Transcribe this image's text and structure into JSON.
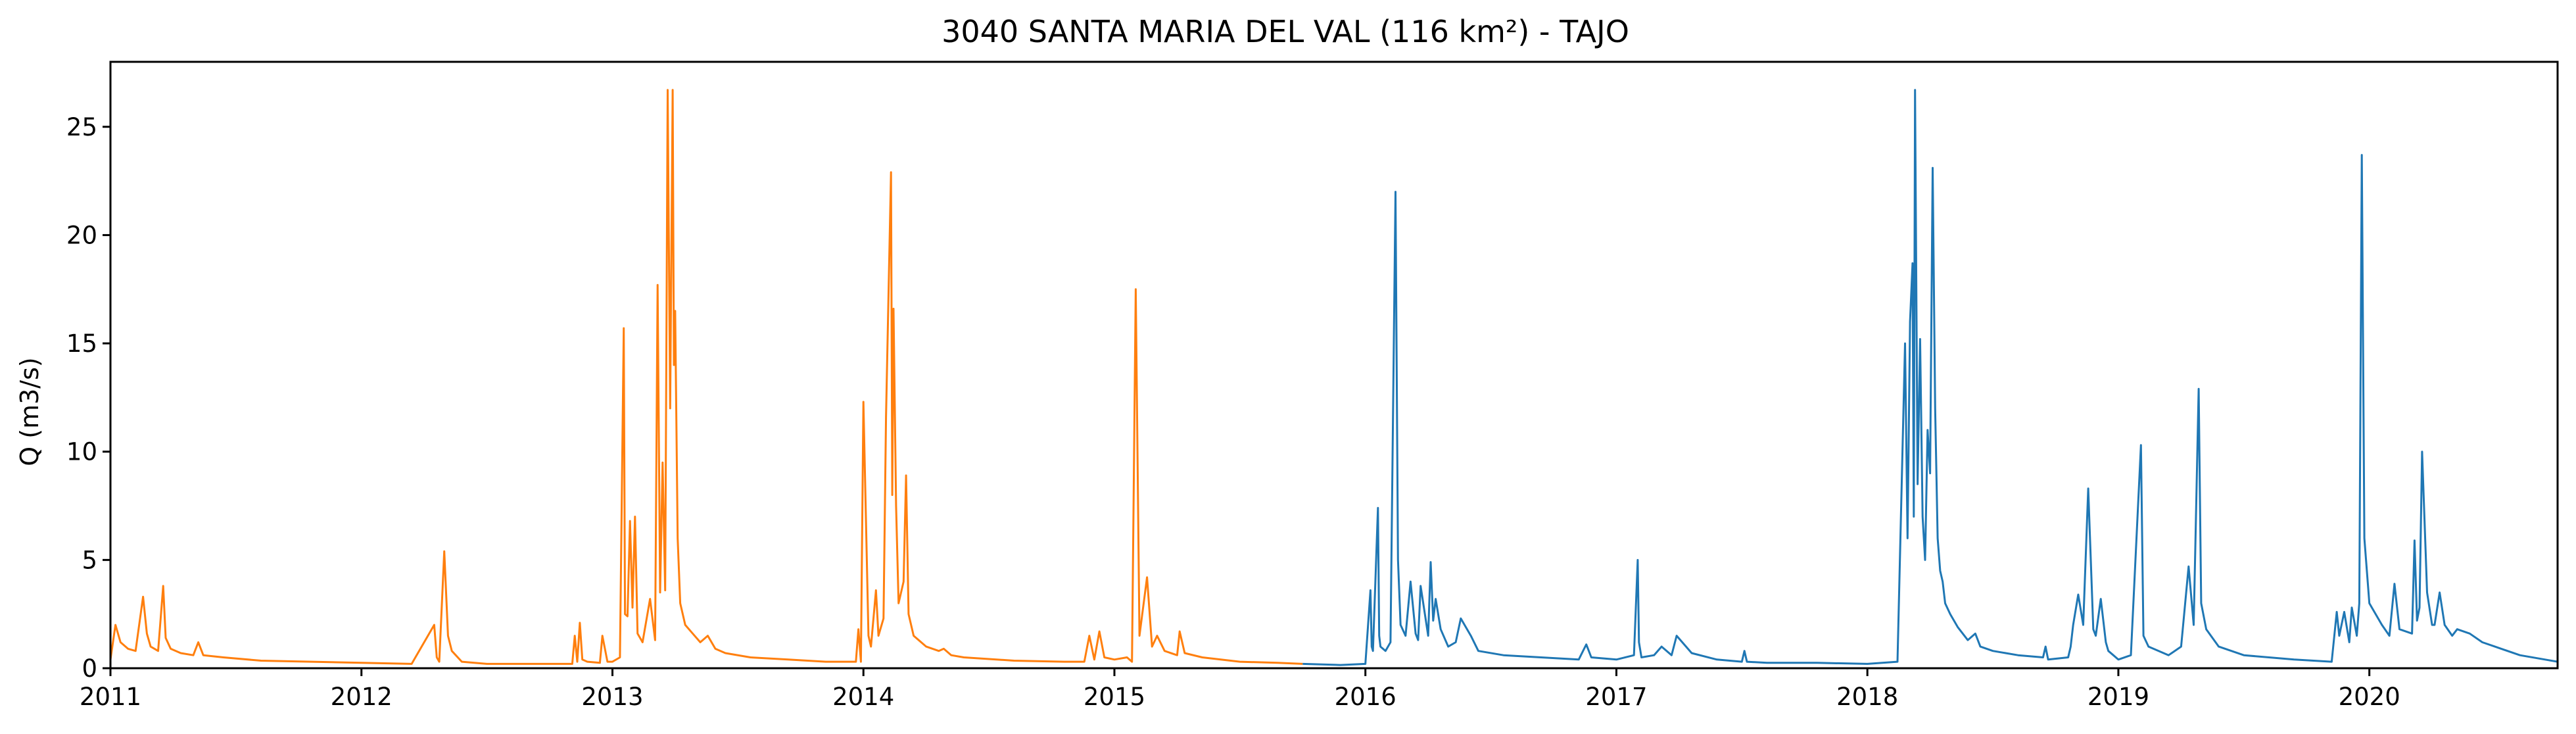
{
  "chart_data": {
    "type": "line",
    "title": "3040 SANTA MARIA DEL VAL (116 km²) - TAJO",
    "xlabel": "",
    "ylabel": "Q (m3/s)",
    "xlim": [
      2011.0,
      2020.75
    ],
    "ylim": [
      0,
      28
    ],
    "x_ticks": [
      2011,
      2012,
      2013,
      2014,
      2015,
      2016,
      2017,
      2018,
      2019,
      2020
    ],
    "x_tick_labels": [
      "2011",
      "2012",
      "2013",
      "2014",
      "2015",
      "2016",
      "2017",
      "2018",
      "2019",
      "2020"
    ],
    "y_ticks": [
      0,
      5,
      10,
      15,
      20,
      25
    ],
    "y_tick_labels": [
      "0",
      "5",
      "10",
      "15",
      "20",
      "25"
    ],
    "grid": false,
    "legend": "none",
    "series": [
      {
        "name": "series-orange",
        "color": "#ff7f0e",
        "x": [
          2011.0,
          2011.02,
          2011.04,
          2011.07,
          2011.1,
          2011.13,
          2011.145,
          2011.16,
          2011.19,
          2011.21,
          2011.22,
          2011.24,
          2011.28,
          2011.33,
          2011.35,
          2011.37,
          2011.45,
          2011.6,
          2011.8,
          2012.0,
          2012.2,
          2012.29,
          2012.3,
          2012.31,
          2012.33,
          2012.345,
          2012.36,
          2012.4,
          2012.5,
          2012.7,
          2012.84,
          2012.85,
          2012.86,
          2012.87,
          2012.88,
          2012.9,
          2012.95,
          2012.96,
          2012.98,
          2013.0,
          2013.03,
          2013.045,
          2013.05,
          2013.06,
          2013.07,
          2013.08,
          2013.09,
          2013.1,
          2013.12,
          2013.15,
          2013.17,
          2013.18,
          2013.19,
          2013.2,
          2013.21,
          2013.22,
          2013.23,
          2013.24,
          2013.245,
          2013.25,
          2013.26,
          2013.27,
          2013.29,
          2013.32,
          2013.35,
          2013.38,
          2013.41,
          2013.45,
          2013.55,
          2013.7,
          2013.85,
          2013.97,
          2013.98,
          2013.99,
          2014.0,
          2014.02,
          2014.03,
          2014.05,
          2014.06,
          2014.08,
          2014.09,
          2014.11,
          2014.115,
          2014.12,
          2014.13,
          2014.14,
          2014.16,
          2014.17,
          2014.18,
          2014.2,
          2014.25,
          2014.3,
          2014.32,
          2014.35,
          2014.4,
          2014.6,
          2014.8,
          2014.88,
          2014.9,
          2014.92,
          2014.94,
          2014.96,
          2015.0,
          2015.05,
          2015.07,
          2015.085,
          2015.1,
          2015.13,
          2015.15,
          2015.17,
          2015.2,
          2015.25,
          2015.26,
          2015.28,
          2015.35,
          2015.5,
          2015.65,
          2015.75
        ],
        "values": [
          0.4,
          2.0,
          1.2,
          0.9,
          0.8,
          3.3,
          1.6,
          1.0,
          0.8,
          3.8,
          1.4,
          0.9,
          0.7,
          0.6,
          1.2,
          0.6,
          0.5,
          0.35,
          0.3,
          0.25,
          0.2,
          2.0,
          0.5,
          0.3,
          5.4,
          1.5,
          0.8,
          0.3,
          0.2,
          0.2,
          0.2,
          1.5,
          0.3,
          2.1,
          0.4,
          0.3,
          0.25,
          1.5,
          0.3,
          0.3,
          0.5,
          15.7,
          2.5,
          2.4,
          6.8,
          2.8,
          7.0,
          1.6,
          1.2,
          3.2,
          1.3,
          17.7,
          3.5,
          9.5,
          3.6,
          26.7,
          12.0,
          26.7,
          14.0,
          16.5,
          6.0,
          3.0,
          2.0,
          1.6,
          1.2,
          1.5,
          0.9,
          0.7,
          0.5,
          0.4,
          0.3,
          0.3,
          1.8,
          0.3,
          12.3,
          1.5,
          1.0,
          3.6,
          1.5,
          2.3,
          11.6,
          22.9,
          8.0,
          16.6,
          7.5,
          3.0,
          4.0,
          8.9,
          2.5,
          1.5,
          1.0,
          0.8,
          0.9,
          0.6,
          0.5,
          0.35,
          0.3,
          0.3,
          1.5,
          0.4,
          1.7,
          0.5,
          0.4,
          0.5,
          0.3,
          17.5,
          1.5,
          4.2,
          1.0,
          1.5,
          0.8,
          0.6,
          1.7,
          0.7,
          0.5,
          0.3,
          0.25,
          0.2
        ]
      },
      {
        "name": "series-blue",
        "color": "#1f77b4",
        "x": [
          2015.75,
          2015.9,
          2016.0,
          2016.02,
          2016.025,
          2016.03,
          2016.05,
          2016.055,
          2016.06,
          2016.08,
          2016.1,
          2016.12,
          2016.13,
          2016.14,
          2016.16,
          2016.18,
          2016.2,
          2016.21,
          2016.22,
          2016.25,
          2016.26,
          2016.27,
          2016.28,
          2016.3,
          2016.33,
          2016.36,
          2016.38,
          2016.42,
          2016.45,
          2016.55,
          2016.7,
          2016.85,
          2016.88,
          2016.9,
          2017.0,
          2017.07,
          2017.085,
          2017.09,
          2017.1,
          2017.15,
          2017.18,
          2017.22,
          2017.24,
          2017.3,
          2017.4,
          2017.5,
          2017.51,
          2017.52,
          2017.6,
          2017.8,
          2018.0,
          2018.12,
          2018.15,
          2018.16,
          2018.17,
          2018.18,
          2018.185,
          2018.19,
          2018.2,
          2018.21,
          2018.22,
          2018.23,
          2018.24,
          2018.25,
          2018.26,
          2018.27,
          2018.28,
          2018.29,
          2018.3,
          2018.31,
          2018.33,
          2018.36,
          2018.4,
          2018.43,
          2018.45,
          2018.5,
          2018.6,
          2018.7,
          2018.71,
          2018.72,
          2018.8,
          2018.81,
          2018.82,
          2018.84,
          2018.86,
          2018.88,
          2018.9,
          2018.91,
          2018.93,
          2018.95,
          2018.96,
          2018.98,
          2019.0,
          2019.05,
          2019.09,
          2019.1,
          2019.12,
          2019.2,
          2019.25,
          2019.28,
          2019.3,
          2019.32,
          2019.33,
          2019.35,
          2019.4,
          2019.5,
          2019.7,
          2019.85,
          2019.87,
          2019.88,
          2019.9,
          2019.92,
          2019.93,
          2019.95,
          2019.96,
          2019.97,
          2019.98,
          2020.0,
          2020.05,
          2020.08,
          2020.1,
          2020.12,
          2020.17,
          2020.18,
          2020.19,
          2020.2,
          2020.21,
          2020.23,
          2020.25,
          2020.26,
          2020.28,
          2020.3,
          2020.33,
          2020.35,
          2020.4,
          2020.45,
          2020.5,
          2020.6,
          2020.7,
          2020.75
        ],
        "values": [
          0.2,
          0.15,
          0.2,
          3.6,
          1.0,
          0.8,
          7.4,
          1.5,
          1.0,
          0.8,
          1.2,
          22.0,
          5.0,
          2.0,
          1.5,
          4.0,
          1.6,
          1.3,
          3.8,
          1.5,
          4.9,
          2.2,
          3.2,
          1.8,
          1.0,
          1.2,
          2.3,
          1.5,
          0.8,
          0.6,
          0.5,
          0.4,
          1.1,
          0.5,
          0.4,
          0.6,
          5.0,
          1.2,
          0.5,
          0.6,
          1.0,
          0.6,
          1.5,
          0.7,
          0.4,
          0.3,
          0.8,
          0.3,
          0.25,
          0.25,
          0.2,
          0.3,
          15.0,
          6.0,
          16.0,
          18.7,
          7.0,
          26.7,
          8.5,
          15.2,
          7.0,
          5.0,
          11.0,
          9.0,
          23.1,
          12.0,
          6.0,
          4.5,
          4.0,
          3.0,
          2.5,
          1.9,
          1.3,
          1.6,
          1.0,
          0.8,
          0.6,
          0.5,
          1.0,
          0.4,
          0.5,
          1.0,
          2.0,
          3.4,
          2.0,
          8.3,
          1.8,
          1.5,
          3.2,
          1.2,
          0.8,
          0.6,
          0.4,
          0.6,
          10.3,
          1.5,
          1.0,
          0.6,
          1.0,
          4.7,
          2.0,
          12.9,
          3.0,
          1.8,
          1.0,
          0.6,
          0.4,
          0.3,
          2.6,
          1.5,
          2.6,
          1.2,
          2.8,
          1.5,
          3.0,
          23.7,
          6.0,
          3.0,
          2.0,
          1.5,
          3.9,
          1.8,
          1.6,
          5.9,
          2.2,
          2.8,
          10.0,
          3.5,
          2.0,
          2.0,
          3.5,
          2.0,
          1.5,
          1.8,
          1.6,
          1.2,
          1.0,
          0.6,
          0.4,
          0.3
        ]
      }
    ]
  }
}
